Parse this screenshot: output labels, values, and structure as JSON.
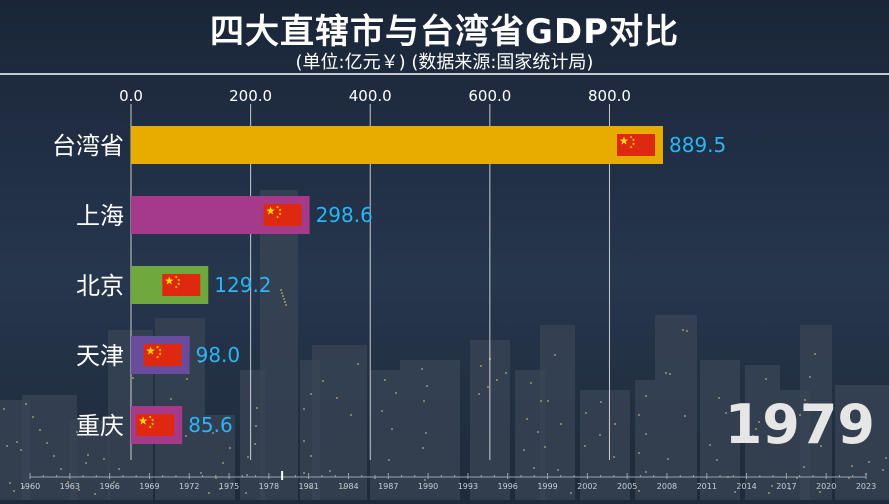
{
  "title": "四大直辖市与台湾省GDP对比",
  "subtitle": "(单位:亿元￥) (数据来源:国家统计局)",
  "current_year": "1979",
  "colors": {
    "taiwan": "#e8ac00",
    "shanghai": "#a63a8a",
    "beijing": "#6fa83c",
    "tianjin": "#6a4c9c",
    "chongqing": "#a63a8a",
    "value_label": "#29b6f6",
    "flag_red": "#de2910",
    "flag_yellow": "#ffde00"
  },
  "chart_data": {
    "type": "bar",
    "orientation": "horizontal",
    "title": "四大直辖市与台湾省GDP对比",
    "subtitle": "(单位:亿元￥) (数据来源:国家统计局)",
    "categories": [
      "台湾省",
      "上海",
      "北京",
      "天津",
      "重庆"
    ],
    "values": [
      889.5,
      298.6,
      129.2,
      98.0,
      85.6
    ],
    "value_labels": [
      "889.5",
      "298.6",
      "129.2",
      "98.0",
      "85.6"
    ],
    "xlim": [
      0,
      889.5
    ],
    "x_ticks": [
      "0.0",
      "200.0",
      "400.0",
      "600.0",
      "800.0"
    ],
    "x_tick_values": [
      0,
      200,
      400,
      600,
      800
    ],
    "grid": true,
    "timeline": {
      "labels": [
        "1960",
        "1963",
        "1966",
        "1969",
        "1972",
        "1975",
        "1978",
        "1981",
        "1984",
        "1987",
        "1990",
        "1993",
        "1996",
        "1999",
        "2002",
        "2005",
        "2008",
        "2011",
        "2014",
        "2017",
        "2020",
        "2023"
      ],
      "current": "1979"
    }
  }
}
